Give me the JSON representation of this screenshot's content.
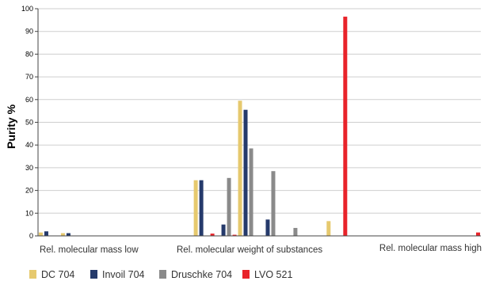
{
  "chart_data": {
    "type": "bar",
    "ylabel": "Purity %",
    "ylim": [
      0,
      100
    ],
    "yticks": [
      0,
      10,
      20,
      30,
      40,
      50,
      60,
      70,
      80,
      90,
      100
    ],
    "grid": true,
    "legend_position": "bottom-left",
    "category_labels": [
      "Rel. molecular mass low",
      "Rel. molecular weight of substances",
      "Rel. molecular mass high"
    ],
    "x": [
      1,
      2,
      3,
      4,
      5,
      6,
      7,
      8,
      9,
      10,
      11,
      12,
      13,
      14,
      15,
      16,
      17,
      18,
      19,
      20
    ],
    "series": [
      {
        "name": "DC 704",
        "color": "#e6c96e",
        "values": [
          1.5,
          1.2,
          0,
          0,
          0,
          0,
          0,
          24.5,
          0,
          59.5,
          0,
          0,
          0,
          6.5,
          0,
          0,
          0,
          0,
          0,
          0
        ]
      },
      {
        "name": "Invoil 704",
        "color": "#253a6b",
        "values": [
          2,
          1.2,
          0,
          0,
          0,
          0,
          0,
          24.5,
          5,
          55.5,
          7.2,
          0,
          0,
          0,
          0,
          0,
          0,
          0,
          0,
          0
        ]
      },
      {
        "name": "Druschke 704",
        "color": "#8a8a8a",
        "values": [
          0,
          0,
          0,
          0,
          0,
          0,
          0,
          0,
          25.5,
          38.5,
          28.5,
          3.5,
          0,
          0,
          0,
          0,
          0,
          0,
          0,
          0
        ]
      },
      {
        "name": "LVO 521",
        "color": "#e8232a",
        "values": [
          0,
          0,
          0,
          0,
          0,
          0,
          0,
          1,
          0.5,
          0,
          0,
          0,
          0,
          96.5,
          0,
          0,
          0,
          0,
          0,
          1.5
        ]
      }
    ]
  }
}
